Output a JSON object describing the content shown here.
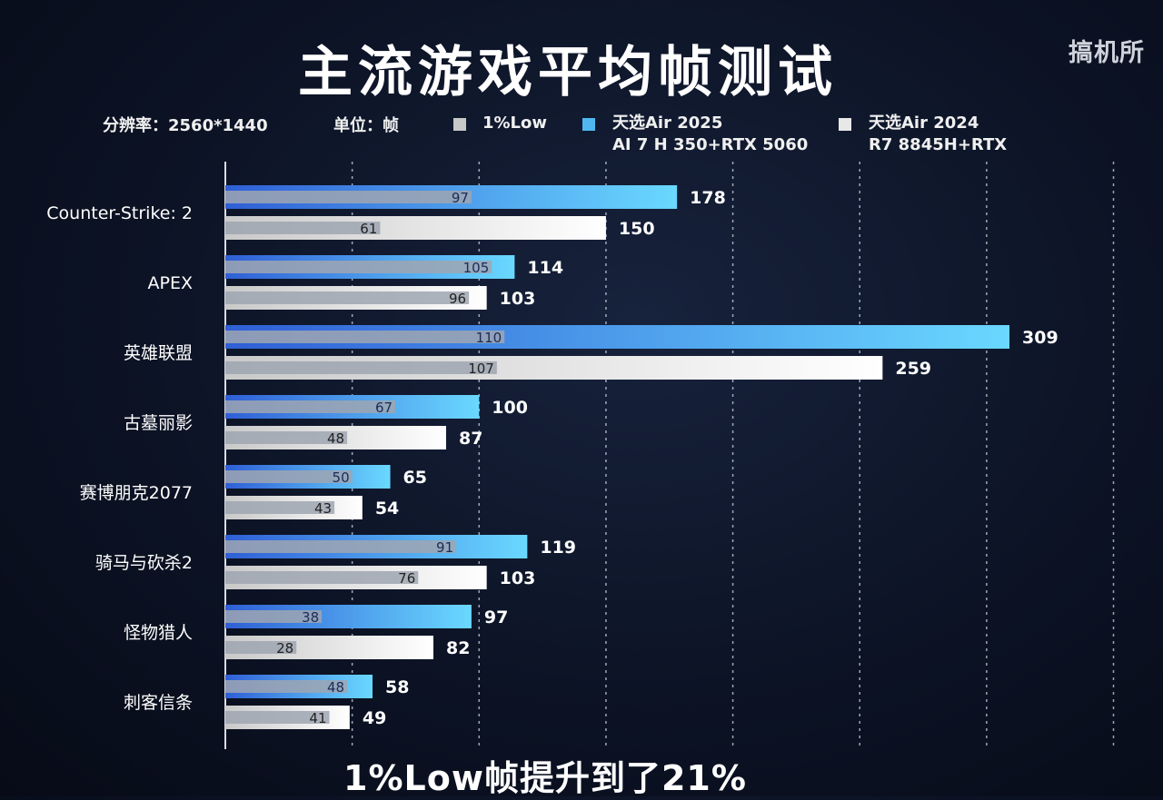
{
  "header": {
    "title": "主流游戏平均帧测试",
    "watermark": "搞机所"
  },
  "info": {
    "resolution": "分辨率：2560*1440",
    "unit": "单位：帧"
  },
  "legend": [
    {
      "key": "low",
      "line1": "1%Low",
      "line2": "",
      "color": "#c8c8c8"
    },
    {
      "key": "air2025",
      "line1": "天选Air 2025",
      "line2": "AI 7 H 350+RTX 5060",
      "color": "#4fb8f0"
    },
    {
      "key": "air2024",
      "line1": "天选Air 2024",
      "line2": "R7 8845H+RTX",
      "color": "#e8e8e8"
    }
  ],
  "footer": "1%Low帧提升到了21%",
  "chart_data": {
    "type": "bar",
    "orientation": "horizontal",
    "xlim": [
      0,
      350
    ],
    "grid": "vertical dashed",
    "categories": [
      "Counter-Strike: 2",
      "APEX",
      "英雄联盟",
      "古墓丽影",
      "赛博朋克2077",
      "骑马与砍杀2",
      "怪物猎人",
      "刺客信条"
    ],
    "series": [
      {
        "name": "天选Air 2025",
        "avg": [
          178,
          114,
          309,
          100,
          65,
          119,
          97,
          58
        ],
        "low": [
          97,
          105,
          110,
          67,
          50,
          91,
          38,
          48
        ]
      },
      {
        "name": "天选Air 2024",
        "avg": [
          150,
          103,
          259,
          87,
          54,
          103,
          82,
          49
        ],
        "low": [
          61,
          96,
          107,
          48,
          43,
          76,
          28,
          41
        ]
      }
    ],
    "colors": {
      "blue_start": "#2f5fd6",
      "blue_end": "#6ad8ff",
      "white_start": "#c9c9c9",
      "white_end": "#ffffff",
      "low_bar": "#9fa6b2",
      "grid": "#cfd6e4"
    }
  }
}
